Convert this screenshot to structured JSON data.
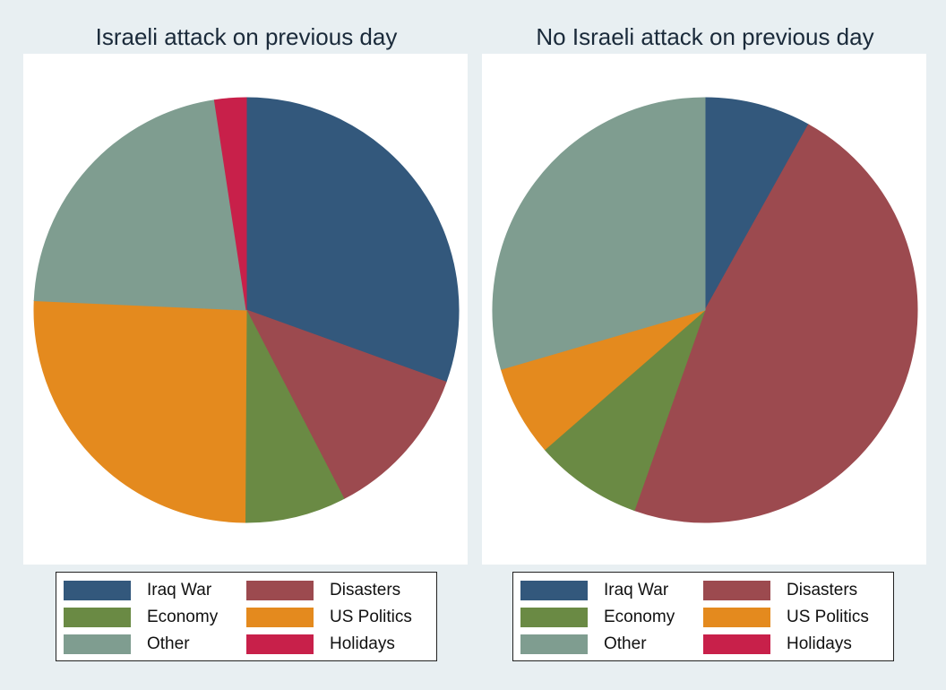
{
  "colors": {
    "Iraq War": "#33587c",
    "Disasters": "#9c4a4f",
    "Economy": "#6a8a44",
    "US Politics": "#e48a1e",
    "Other": "#7f9d90",
    "Holidays": "#c8204a"
  },
  "legend": {
    "items": [
      "Iraq War",
      "Disasters",
      "Economy",
      "US Politics",
      "Other",
      "Holidays"
    ]
  },
  "chart_data": [
    {
      "type": "pie",
      "title": "Israeli attack on previous day",
      "categories": [
        "Iraq War",
        "Disasters",
        "Economy",
        "US Politics",
        "Other",
        "Holidays"
      ],
      "values": [
        30.5,
        11.9,
        7.7,
        25.6,
        21.9,
        2.4
      ],
      "start_angle": 0,
      "direction": "clockwise"
    },
    {
      "type": "pie",
      "title": "No Israeli attack on previous day",
      "categories": [
        "Iraq War",
        "Disasters",
        "Economy",
        "US Politics",
        "Other",
        "Holidays"
      ],
      "values": [
        8.1,
        47.3,
        8.2,
        6.9,
        29.5,
        0
      ],
      "start_angle": 0,
      "direction": "clockwise"
    }
  ]
}
